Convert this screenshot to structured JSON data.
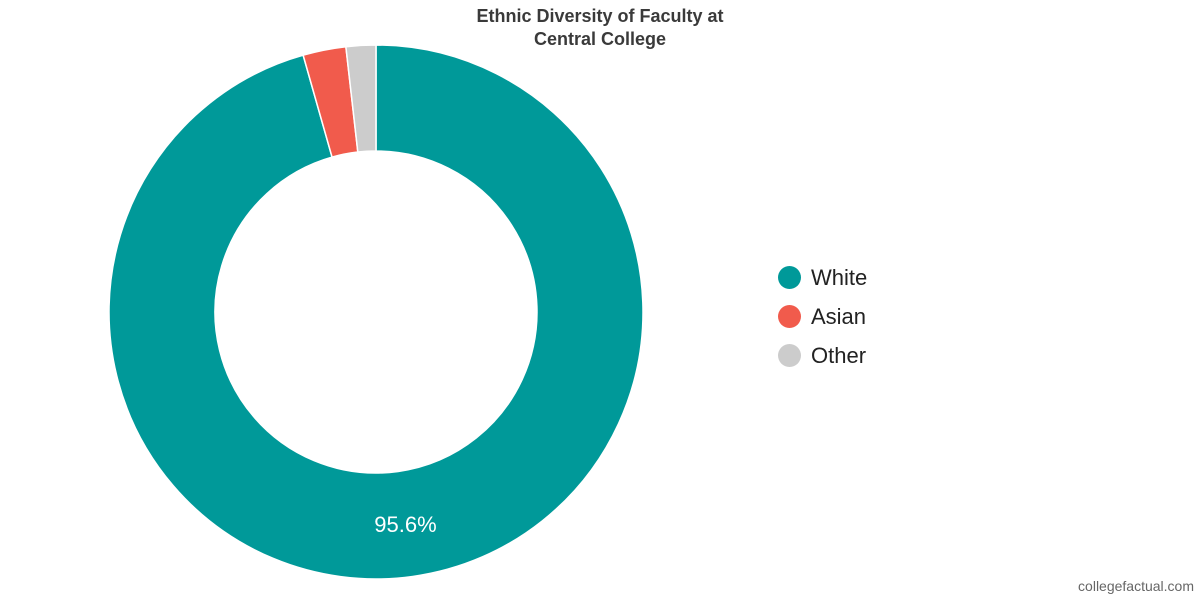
{
  "chart_data": {
    "type": "pie",
    "donut": true,
    "title_lines": [
      "Ethnic Diversity of Faculty at",
      "Central College"
    ],
    "categories": [
      "White",
      "Asian",
      "Other"
    ],
    "values": [
      95.6,
      2.6,
      1.8
    ],
    "colors": [
      "#009999",
      "#f15b4c",
      "#cccccc"
    ],
    "data_labels": [
      "95.6%",
      "",
      ""
    ],
    "legend_position": "right"
  },
  "watermark": "collegefactual.com"
}
